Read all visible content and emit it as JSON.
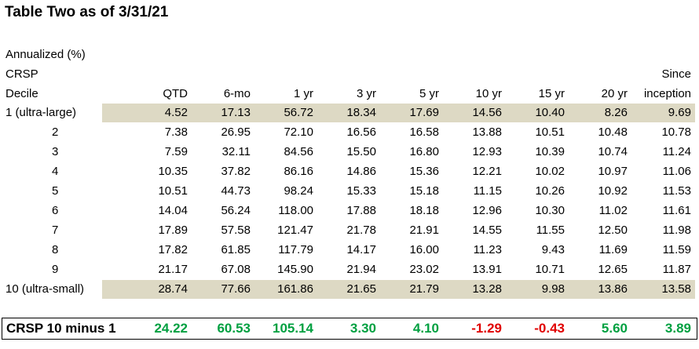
{
  "title": "Table Two as of 3/31/21",
  "header": {
    "lines": [
      "Annualized (%)",
      "CRSP",
      "Decile"
    ],
    "columns": [
      "QTD",
      "6-mo",
      "1 yr",
      "3 yr",
      "5 yr",
      "10 yr",
      "15 yr",
      "20 yr",
      "Since inception"
    ]
  },
  "table": {
    "rows": [
      {
        "label": "1 (ultra-large)",
        "values": [
          "4.52",
          "17.13",
          "56.72",
          "18.34",
          "17.69",
          "14.56",
          "10.40",
          "8.26",
          "9.69"
        ]
      },
      {
        "label": "2",
        "values": [
          "7.38",
          "26.95",
          "72.10",
          "16.56",
          "16.58",
          "13.88",
          "10.51",
          "10.48",
          "10.78"
        ]
      },
      {
        "label": "3",
        "values": [
          "7.59",
          "32.11",
          "84.56",
          "15.50",
          "16.80",
          "12.93",
          "10.39",
          "10.74",
          "11.24"
        ]
      },
      {
        "label": "4",
        "values": [
          "10.35",
          "37.82",
          "86.16",
          "14.86",
          "15.36",
          "12.21",
          "10.02",
          "10.97",
          "11.06"
        ]
      },
      {
        "label": "5",
        "values": [
          "10.51",
          "44.73",
          "98.24",
          "15.33",
          "15.18",
          "11.15",
          "10.26",
          "10.92",
          "11.53"
        ]
      },
      {
        "label": "6",
        "values": [
          "14.04",
          "56.24",
          "118.00",
          "17.88",
          "18.18",
          "12.96",
          "10.30",
          "11.02",
          "11.61"
        ]
      },
      {
        "label": "7",
        "values": [
          "17.89",
          "57.58",
          "121.47",
          "21.78",
          "21.91",
          "14.55",
          "11.55",
          "12.50",
          "11.98"
        ]
      },
      {
        "label": "8",
        "values": [
          "17.82",
          "61.85",
          "117.79",
          "14.17",
          "16.00",
          "11.23",
          "9.43",
          "11.69",
          "11.59"
        ]
      },
      {
        "label": "9",
        "values": [
          "21.17",
          "67.08",
          "145.90",
          "21.94",
          "23.02",
          "13.91",
          "10.71",
          "12.65",
          "11.87"
        ]
      },
      {
        "label": "10 (ultra-small)",
        "values": [
          "28.74",
          "77.66",
          "161.86",
          "21.65",
          "21.79",
          "13.28",
          "9.98",
          "13.86",
          "13.58"
        ]
      }
    ],
    "summary": {
      "label": "CRSP 10 minus 1",
      "values": [
        "24.22",
        "60.53",
        "105.14",
        "3.30",
        "4.10",
        "-1.29",
        "-0.43",
        "5.60",
        "3.89"
      ]
    }
  }
}
